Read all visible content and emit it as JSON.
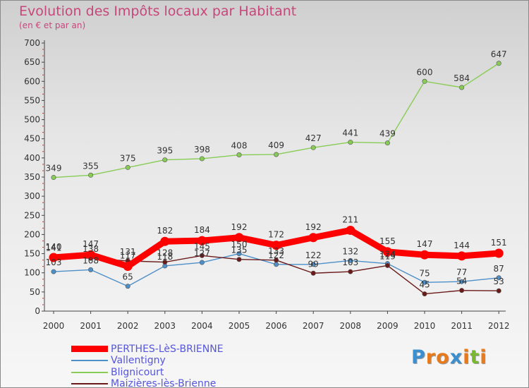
{
  "title": "Evolution des Impôts locaux par Habitant",
  "subtitle": "(en € et par an)",
  "logo": {
    "text": "Proxiti",
    "letters": [
      {
        "ch": "P",
        "color": "#3a8fd0"
      },
      {
        "ch": "r",
        "color": "#e87a1e"
      },
      {
        "ch": "o",
        "color": "#e87a1e"
      },
      {
        "ch": "x",
        "color": "#3a8fd0"
      },
      {
        "ch": "i",
        "color": "#e87a1e"
      },
      {
        "ch": "t",
        "color": "#7ab830"
      },
      {
        "ch": "i",
        "color": "#e87a1e"
      }
    ]
  },
  "chart_data": {
    "type": "line",
    "title": "Evolution des Impôts locaux par Habitant",
    "subtitle": "(en € et par an)",
    "xlabel": "",
    "ylabel": "",
    "categories": [
      "2000",
      "2001",
      "2002",
      "2003",
      "2004",
      "2005",
      "2006",
      "2007",
      "2008",
      "2009",
      "2010",
      "2011",
      "2012"
    ],
    "ylim": [
      0,
      700
    ],
    "yticks": [
      0,
      50,
      100,
      150,
      200,
      250,
      300,
      350,
      400,
      450,
      500,
      550,
      600,
      650,
      700
    ],
    "grid": false,
    "legend_position": "bottom-left",
    "series": [
      {
        "name": "PERTHES-LèS-BRIENNE",
        "color": "#ff0000",
        "width": "thick",
        "values": [
          140,
          147,
          117,
          182,
          184,
          192,
          172,
          192,
          211,
          155,
          147,
          144,
          151
        ]
      },
      {
        "name": "Vallentigny",
        "color": "#4d8fc8",
        "width": "thin",
        "values": [
          103,
          108,
          65,
          118,
          127,
          150,
          122,
          122,
          132,
          124,
          75,
          77,
          87
        ]
      },
      {
        "name": "Blignicourt",
        "color": "#88cc55",
        "width": "thin",
        "values": [
          349,
          355,
          375,
          395,
          398,
          408,
          409,
          427,
          441,
          439,
          600,
          584,
          647
        ]
      },
      {
        "name": "Maizières-lès-Brienne",
        "color": "#6b1a1a",
        "width": "thin",
        "values": [
          141,
          138,
          131,
          128,
          145,
          135,
          133,
          99,
          103,
          119,
          45,
          54,
          53
        ]
      }
    ]
  }
}
